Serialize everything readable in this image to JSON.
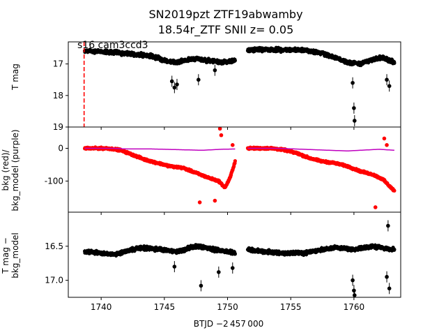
{
  "figure": {
    "title_line1": "SN2019pzt  ZTF19abwamby",
    "title_line2": "18.54r_ZTF SNII z= 0.05",
    "annotation": "s16 cam3ccd3",
    "xlabel": "BTJD −2 457 000"
  },
  "chart_data": [
    {
      "type": "scatter",
      "panel": "top",
      "ylabel": "T mag",
      "xlim": [
        1737.4,
        1763.7
      ],
      "ylim": [
        19.0,
        16.3
      ],
      "y_inverted": true,
      "xticks": [
        1740,
        1745,
        1750,
        1755,
        1760
      ],
      "yticks": [
        17,
        18,
        19
      ],
      "series": [
        {
          "color": "#000000",
          "marker": "dot",
          "segments": [
            {
              "x_start": 1738.7,
              "x_end": 1750.6,
              "knots": [
                [
                  1738.7,
                  16.58
                ],
                [
                  1741.0,
                  16.63
                ],
                [
                  1743.0,
                  16.7
                ],
                [
                  1744.5,
                  16.8
                ],
                [
                  1745.0,
                  16.9
                ],
                [
                  1746.0,
                  16.95
                ],
                [
                  1747.5,
                  16.82
                ],
                [
                  1748.5,
                  16.9
                ],
                [
                  1749.5,
                  16.95
                ],
                [
                  1750.6,
                  16.9
                ]
              ]
            },
            {
              "x_start": 1751.6,
              "x_end": 1763.2,
              "knots": [
                [
                  1751.6,
                  16.55
                ],
                [
                  1754.0,
                  16.55
                ],
                [
                  1756.0,
                  16.55
                ],
                [
                  1757.5,
                  16.65
                ],
                [
                  1758.5,
                  16.8
                ],
                [
                  1759.5,
                  16.95
                ],
                [
                  1760.5,
                  17.0
                ],
                [
                  1761.5,
                  16.85
                ],
                [
                  1762.3,
                  16.8
                ],
                [
                  1763.2,
                  16.95
                ]
              ]
            }
          ],
          "dips": [
            [
              1745.6,
              17.55
            ],
            [
              1745.8,
              17.75
            ],
            [
              1746.0,
              17.65
            ],
            [
              1747.7,
              17.5
            ],
            [
              1749.0,
              17.2
            ],
            [
              1759.9,
              17.6
            ],
            [
              1760.0,
              18.4
            ],
            [
              1760.05,
              18.8
            ],
            [
              1762.6,
              17.5
            ],
            [
              1762.8,
              17.7
            ]
          ]
        }
      ],
      "vline": {
        "x": 1738.65,
        "color": "#ff0000",
        "style": "dashed"
      }
    },
    {
      "type": "scatter",
      "panel": "middle",
      "ylabel": "bkg (red)/\nbkg_model (purple)",
      "ylabel_line1": "bkg (red)/",
      "ylabel_line2": "bkg_model (purple)",
      "xlim": [
        1737.4,
        1763.7
      ],
      "ylim": [
        -195,
        65
      ],
      "yticks": [
        0,
        -100
      ],
      "series": [
        {
          "name": "bkg",
          "color": "#ff0000",
          "marker": "dot",
          "segments": [
            {
              "x_start": 1738.7,
              "x_end": 1750.6,
              "knots": [
                [
                  1738.7,
                  0
                ],
                [
                  1740.5,
                  0
                ],
                [
                  1741.5,
                  -5
                ],
                [
                  1742.5,
                  -20
                ],
                [
                  1743.5,
                  -35
                ],
                [
                  1744.5,
                  -45
                ],
                [
                  1745.5,
                  -55
                ],
                [
                  1746.5,
                  -60
                ],
                [
                  1747.5,
                  -75
                ],
                [
                  1748.5,
                  -90
                ],
                [
                  1749.3,
                  -100
                ],
                [
                  1749.8,
                  -120
                ],
                [
                  1750.2,
                  -90
                ],
                [
                  1750.6,
                  -40
                ]
              ]
            },
            {
              "x_start": 1751.6,
              "x_end": 1763.2,
              "knots": [
                [
                  1751.6,
                  0
                ],
                [
                  1753.5,
                  0
                ],
                [
                  1754.5,
                  -5
                ],
                [
                  1755.5,
                  -15
                ],
                [
                  1756.5,
                  -30
                ],
                [
                  1757.5,
                  -40
                ],
                [
                  1758.5,
                  -45
                ],
                [
                  1759.5,
                  -55
                ],
                [
                  1760.5,
                  -70
                ],
                [
                  1761.5,
                  -80
                ],
                [
                  1762.3,
                  -95
                ],
                [
                  1762.8,
                  -115
                ],
                [
                  1763.2,
                  -130
                ]
              ]
            }
          ],
          "outliers": [
            [
              1749.4,
              60
            ],
            [
              1749.5,
              40
            ],
            [
              1750.4,
              10
            ],
            [
              1747.8,
              -165
            ],
            [
              1749.0,
              -160
            ],
            [
              1762.4,
              30
            ],
            [
              1762.6,
              10
            ],
            [
              1761.7,
              -180
            ]
          ]
        },
        {
          "name": "bkg_model",
          "color": "#bf00bf",
          "marker": "line",
          "segments": [
            {
              "x_start": 1738.7,
              "x_end": 1750.6,
              "knots": [
                [
                  1738.7,
                  0
                ],
                [
                  1741.0,
                  0
                ],
                [
                  1742.0,
                  -2
                ],
                [
                  1744.0,
                  -2
                ],
                [
                  1746.0,
                  -4
                ],
                [
                  1748.0,
                  -6
                ],
                [
                  1749.5,
                  -3
                ],
                [
                  1750.6,
                  -2
                ]
              ]
            },
            {
              "x_start": 1751.6,
              "x_end": 1763.2,
              "knots": [
                [
                  1751.6,
                  0
                ],
                [
                  1754.0,
                  0
                ],
                [
                  1756.0,
                  -3
                ],
                [
                  1758.0,
                  -6
                ],
                [
                  1759.5,
                  -8
                ],
                [
                  1761.0,
                  -5
                ],
                [
                  1762.0,
                  -3
                ],
                [
                  1763.2,
                  -6
                ]
              ]
            }
          ]
        }
      ]
    },
    {
      "type": "scatter",
      "panel": "bottom",
      "ylabel": "T mag −\nbkg_model",
      "ylabel_line1": "T mag −",
      "ylabel_line2": "bkg_model",
      "xlim": [
        1737.4,
        1763.7
      ],
      "ylim": [
        17.25,
        16.0
      ],
      "y_inverted": true,
      "yticks": [
        16.5,
        17.0
      ],
      "series": [
        {
          "color": "#000000",
          "marker": "dot",
          "segments": [
            {
              "x_start": 1738.7,
              "x_end": 1750.6,
              "knots": [
                [
                  1738.7,
                  16.58
                ],
                [
                  1741.0,
                  16.62
                ],
                [
                  1743.0,
                  16.52
                ],
                [
                  1745.0,
                  16.55
                ],
                [
                  1746.0,
                  16.58
                ],
                [
                  1747.5,
                  16.5
                ],
                [
                  1749.0,
                  16.55
                ],
                [
                  1750.6,
                  16.6
                ]
              ]
            },
            {
              "x_start": 1751.6,
              "x_end": 1763.2,
              "knots": [
                [
                  1751.6,
                  16.55
                ],
                [
                  1754.0,
                  16.6
                ],
                [
                  1756.0,
                  16.6
                ],
                [
                  1757.5,
                  16.55
                ],
                [
                  1758.5,
                  16.52
                ],
                [
                  1760.0,
                  16.55
                ],
                [
                  1761.5,
                  16.5
                ],
                [
                  1763.2,
                  16.55
                ]
              ]
            }
          ],
          "dips": [
            [
              1747.9,
              17.08
            ],
            [
              1749.3,
              16.88
            ],
            [
              1750.4,
              16.82
            ],
            [
              1745.8,
              16.8
            ],
            [
              1759.9,
              17.0
            ],
            [
              1760.0,
              17.15
            ],
            [
              1760.05,
              17.22
            ],
            [
              1762.6,
              16.95
            ],
            [
              1762.8,
              17.12
            ],
            [
              1762.7,
              16.2
            ]
          ]
        }
      ]
    }
  ]
}
